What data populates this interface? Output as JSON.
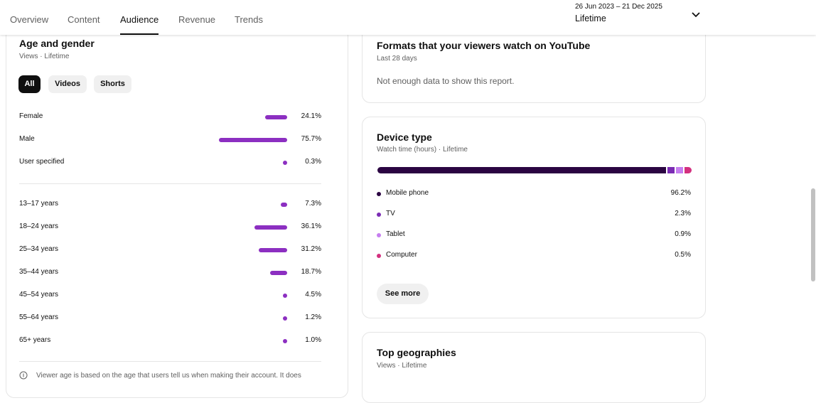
{
  "tabs": [
    {
      "label": "Overview"
    },
    {
      "label": "Content"
    },
    {
      "label": "Audience"
    },
    {
      "label": "Revenue"
    },
    {
      "label": "Trends"
    }
  ],
  "active_tab": "Audience",
  "date_range": "26 Jun 2023 – 21 Dec 2025",
  "period": "Lifetime",
  "age_gender": {
    "title": "Age and gender",
    "subtitle": "Views · Lifetime",
    "filters": [
      {
        "label": "All"
      },
      {
        "label": "Videos"
      },
      {
        "label": "Shorts"
      }
    ],
    "gender": [
      {
        "label": "Female",
        "value": 24.1,
        "text": "24.1%"
      },
      {
        "label": "Male",
        "value": 75.7,
        "text": "75.7%"
      },
      {
        "label": "User specified",
        "value": 0.3,
        "text": "0.3%"
      }
    ],
    "age": [
      {
        "label": "13–17 years",
        "value": 7.3,
        "text": "7.3%"
      },
      {
        "label": "18–24 years",
        "value": 36.1,
        "text": "36.1%"
      },
      {
        "label": "25–34 years",
        "value": 31.2,
        "text": "31.2%"
      },
      {
        "label": "35–44 years",
        "value": 18.7,
        "text": "18.7%"
      },
      {
        "label": "45–54 years",
        "value": 4.5,
        "text": "4.5%"
      },
      {
        "label": "55–64 years",
        "value": 1.2,
        "text": "1.2%"
      },
      {
        "label": "65+ years",
        "value": 1.0,
        "text": "1.0%"
      }
    ],
    "note": "Viewer age is based on the age that users tell us when making their account. It does",
    "bar_color": "#8c2fc1"
  },
  "formats": {
    "title": "Formats that your viewers watch on YouTube",
    "subtitle": "Last 28 days",
    "message": "Not enough data to show this report."
  },
  "device": {
    "title": "Device type",
    "subtitle": "Watch time (hours) · Lifetime",
    "items": [
      {
        "label": "Mobile phone",
        "value": 96.2,
        "text": "96.2%",
        "color": "#2b0542"
      },
      {
        "label": "TV",
        "value": 2.3,
        "text": "2.3%",
        "color": "#7b2cb4"
      },
      {
        "label": "Tablet",
        "value": 0.9,
        "text": "0.9%",
        "color": "#c67ef0"
      },
      {
        "label": "Computer",
        "value": 0.5,
        "text": "0.5%",
        "color": "#d3307f"
      }
    ],
    "see_more": "See more"
  },
  "geo": {
    "title": "Top geographies",
    "subtitle": "Views · Lifetime"
  }
}
